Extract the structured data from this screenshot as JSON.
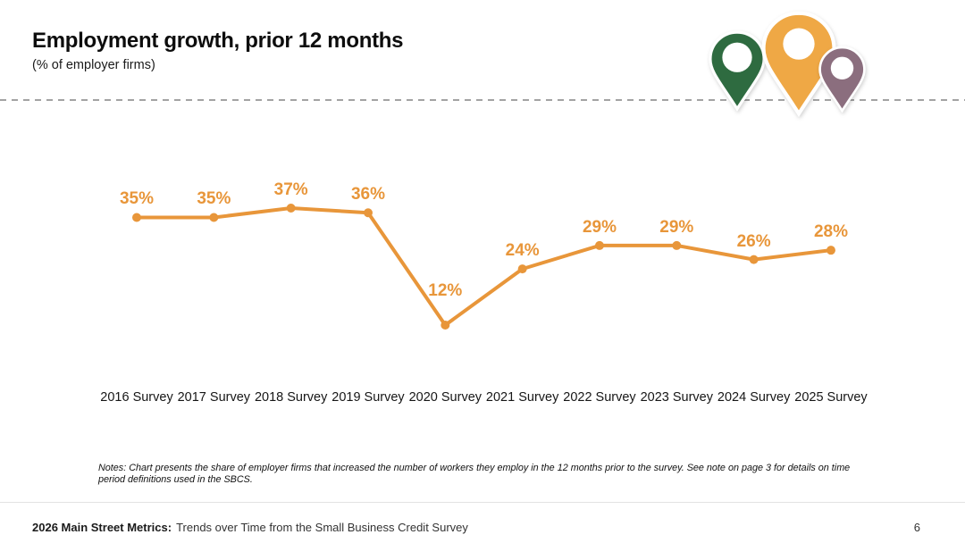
{
  "header": {
    "title": "Employment growth, prior 12 months",
    "subtitle": "(% of employer firms)"
  },
  "logo": {
    "pins": [
      {
        "name": "green-map-pin",
        "color": "#2E6B40"
      },
      {
        "name": "orange-map-pin",
        "color": "#EFA845"
      },
      {
        "name": "purple-map-pin",
        "color": "#8B6E7E"
      }
    ]
  },
  "chart_data": {
    "type": "line",
    "title": "Employment growth, prior 12 months",
    "subtitle": "(% of employer firms)",
    "categories": [
      "2016 Survey",
      "2017 Survey",
      "2018 Survey",
      "2019 Survey",
      "2020 Survey",
      "2021 Survey",
      "2022 Survey",
      "2023 Survey",
      "2024 Survey",
      "2025 Survey"
    ],
    "values": [
      35,
      35,
      37,
      36,
      12,
      24,
      29,
      29,
      26,
      28
    ],
    "value_labels": [
      "35%",
      "35%",
      "37%",
      "36%",
      "12%",
      "24%",
      "29%",
      "29%",
      "26%",
      "28%"
    ],
    "unit": "%",
    "line_color": "#E8963A",
    "xlabel": "",
    "ylabel": "",
    "ylim": [
      0,
      45
    ],
    "grid": false,
    "legend": false
  },
  "notes": "Notes: Chart presents the share of employer firms that increased the number of workers they employ in the 12 months prior to the survey. See note on page 3 for details on time period definitions used in the SBCS.",
  "footer": {
    "bold": "2026 Main Street Metrics:",
    "regular": "Trends over Time from the Small Business Credit Survey",
    "page_number": "6"
  }
}
